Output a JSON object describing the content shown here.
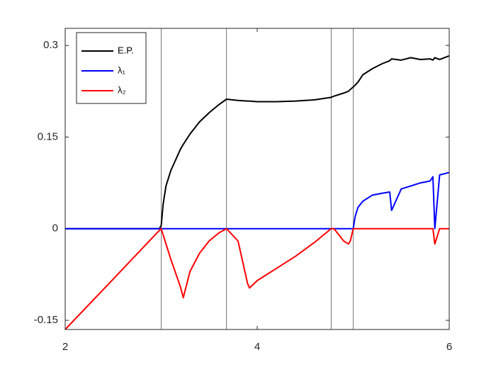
{
  "chart_data": {
    "type": "line",
    "x": [
      2,
      2.5,
      2.98,
      3.0,
      3.02,
      3.05,
      3.1,
      3.2,
      3.23,
      3.3,
      3.4,
      3.5,
      3.6,
      3.68,
      3.8,
      3.9,
      3.92,
      4.0,
      4.2,
      4.4,
      4.6,
      4.77,
      4.8,
      4.9,
      4.95,
      4.97,
      5.0,
      5.02,
      5.05,
      5.1,
      5.2,
      5.3,
      5.38,
      5.4,
      5.5,
      5.6,
      5.7,
      5.8,
      5.83,
      5.85,
      5.9,
      6.0
    ],
    "series": [
      {
        "name": "E.P.",
        "color": "#000000",
        "values": [
          0,
          0,
          0,
          0.005,
          0.04,
          0.07,
          0.095,
          0.13,
          0.138,
          0.155,
          0.175,
          0.19,
          0.203,
          0.212,
          0.21,
          0.209,
          0.209,
          0.208,
          0.208,
          0.209,
          0.211,
          0.215,
          0.217,
          0.222,
          0.225,
          0.228,
          0.232,
          0.235,
          0.24,
          0.252,
          0.262,
          0.27,
          0.275,
          0.278,
          0.276,
          0.28,
          0.277,
          0.278,
          0.276,
          0.28,
          0.277,
          0.283
        ]
      },
      {
        "name": "λ₁",
        "color": "#0000ff",
        "values": [
          0,
          0,
          0,
          0,
          0,
          0,
          0,
          0,
          0,
          0,
          0,
          0,
          0,
          0,
          0,
          0,
          0,
          0,
          0,
          0,
          0,
          0,
          0,
          0,
          0,
          0,
          0,
          0.02,
          0.035,
          0.045,
          0.055,
          0.058,
          0.06,
          0.03,
          0.065,
          0.07,
          0.075,
          0.078,
          0.085,
          0,
          0.088,
          0.092
        ]
      },
      {
        "name": "λ₂",
        "color": "#ff0000",
        "values": [
          -0.165,
          -0.0825,
          -0.003,
          0,
          -0.01,
          -0.025,
          -0.05,
          -0.095,
          -0.113,
          -0.07,
          -0.04,
          -0.02,
          -0.007,
          0,
          -0.02,
          -0.09,
          -0.097,
          -0.085,
          -0.065,
          -0.045,
          -0.022,
          0,
          0,
          -0.02,
          -0.025,
          -0.02,
          0,
          0,
          0,
          0,
          0,
          0,
          0,
          0,
          0,
          0,
          0,
          0,
          0,
          -0.025,
          0,
          0
        ]
      }
    ],
    "vlines": [
      3,
      3.68,
      4.77,
      5
    ],
    "xlim": [
      2,
      6
    ],
    "ylim": [
      -0.165,
      0.328
    ],
    "xticks": [
      2,
      4,
      6
    ],
    "yticks": [
      -0.15,
      0,
      0.15,
      0.3
    ],
    "legend": "upper-left"
  }
}
